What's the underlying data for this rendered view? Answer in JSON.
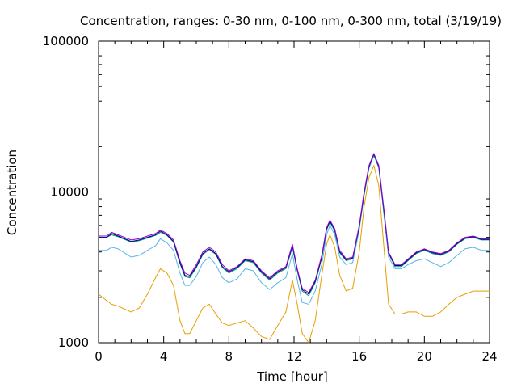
{
  "chart_data": {
    "type": "line",
    "title": "Concentration, ranges: 0-30 nm, 0-100 nm, 0-300 nm, total (3/19/19)",
    "xlabel": "Time [hour]",
    "ylabel": "Concentration",
    "xlim": [
      0,
      24
    ],
    "ylim": [
      1000,
      100000
    ],
    "yscale": "log",
    "grid": false,
    "legend": "none",
    "x_ticks": [
      0,
      4,
      8,
      12,
      16,
      20,
      24
    ],
    "x_tick_labels": [
      "0",
      "4",
      "8",
      "12",
      "16",
      "20",
      "24"
    ],
    "y_ticks": [
      1000,
      10000,
      100000
    ],
    "y_tick_labels": [
      "1000",
      "10000",
      "100000"
    ],
    "x": [
      0,
      0.5,
      0.8,
      1.2,
      2,
      2.5,
      3,
      3.5,
      3.8,
      4.2,
      4.6,
      5,
      5.3,
      5.6,
      6,
      6.4,
      6.8,
      7.2,
      7.6,
      8,
      8.5,
      9,
      9.5,
      10,
      10.5,
      11,
      11.5,
      11.9,
      12.2,
      12.5,
      12.9,
      13.3,
      13.7,
      14,
      14.2,
      14.5,
      14.8,
      15.2,
      15.6,
      16,
      16.3,
      16.6,
      16.9,
      17.2,
      17.5,
      17.8,
      18.2,
      18.6,
      19,
      19.5,
      20,
      20.5,
      21,
      21.5,
      22,
      22.5,
      23,
      23.5,
      24
    ],
    "series": [
      {
        "color": "#9400d3",
        "values": [
          5100,
          5100,
          5400,
          5200,
          4800,
          4900,
          5100,
          5300,
          5600,
          5300,
          4800,
          3500,
          2900,
          2800,
          3300,
          4000,
          4300,
          4000,
          3300,
          3000,
          3200,
          3600,
          3500,
          3000,
          2700,
          3000,
          3200,
          4500,
          3100,
          2300,
          2150,
          2600,
          3800,
          5800,
          6500,
          5700,
          4100,
          3600,
          3700,
          6000,
          10000,
          15000,
          18000,
          15000,
          8000,
          4000,
          3300,
          3300,
          3600,
          4000,
          4200,
          4000,
          3900,
          4100,
          4600,
          5000,
          5100,
          4900,
          4900
        ]
      },
      {
        "color": "#000080",
        "values": [
          5000,
          5000,
          5300,
          5100,
          4700,
          4800,
          5000,
          5200,
          5500,
          5200,
          4700,
          3400,
          2800,
          2750,
          3200,
          3900,
          4200,
          3900,
          3200,
          2950,
          3150,
          3550,
          3450,
          2950,
          2650,
          2950,
          3150,
          4400,
          3050,
          2250,
          2100,
          2550,
          3700,
          5700,
          6400,
          5600,
          4000,
          3550,
          3650,
          5900,
          9800,
          14800,
          17800,
          14800,
          7800,
          3950,
          3250,
          3250,
          3550,
          3950,
          4150,
          3950,
          3850,
          4050,
          4550,
          4950,
          5050,
          4850,
          4850
        ]
      },
      {
        "color": "#009e73",
        "values": [
          5000,
          5000,
          5200,
          5050,
          4650,
          4750,
          4950,
          5150,
          5400,
          5150,
          4650,
          3350,
          2750,
          2700,
          3150,
          3850,
          4150,
          3850,
          3150,
          2900,
          3100,
          3500,
          3400,
          2900,
          2600,
          2900,
          3100,
          4300,
          3000,
          2200,
          2050,
          2500,
          3650,
          5600,
          6300,
          5500,
          3950,
          3500,
          3600,
          5800,
          9600,
          14600,
          17600,
          14600,
          7700,
          3900,
          3200,
          3200,
          3500,
          3900,
          4100,
          3900,
          3800,
          4000,
          4500,
          4900,
          5000,
          4800,
          4800
        ]
      },
      {
        "color": "#56b4e9",
        "values": [
          4100,
          4100,
          4300,
          4200,
          3700,
          3800,
          4100,
          4400,
          4900,
          4600,
          4100,
          2900,
          2400,
          2400,
          2750,
          3400,
          3700,
          3300,
          2700,
          2500,
          2650,
          3100,
          3000,
          2500,
          2250,
          2500,
          2700,
          3900,
          2600,
          1850,
          1800,
          2200,
          3300,
          5200,
          6000,
          5200,
          3700,
          3300,
          3400,
          5600,
          9400,
          14400,
          17400,
          14400,
          7300,
          3700,
          3100,
          3100,
          3300,
          3500,
          3600,
          3400,
          3200,
          3400,
          3800,
          4200,
          4300,
          4100,
          4100
        ]
      },
      {
        "color": "#e69f00",
        "values": [
          2100,
          1900,
          1800,
          1750,
          1600,
          1700,
          2100,
          2700,
          3100,
          2900,
          2400,
          1400,
          1150,
          1150,
          1400,
          1700,
          1800,
          1550,
          1350,
          1300,
          1350,
          1400,
          1250,
          1100,
          1050,
          1300,
          1600,
          2600,
          1800,
          1150,
          1000,
          1400,
          2800,
          4500,
          5200,
          4300,
          2800,
          2200,
          2300,
          4000,
          8000,
          12500,
          15000,
          11000,
          4500,
          1800,
          1550,
          1550,
          1600,
          1600,
          1500,
          1500,
          1600,
          1800,
          2000,
          2100,
          2200,
          2200,
          2200
        ]
      }
    ]
  }
}
